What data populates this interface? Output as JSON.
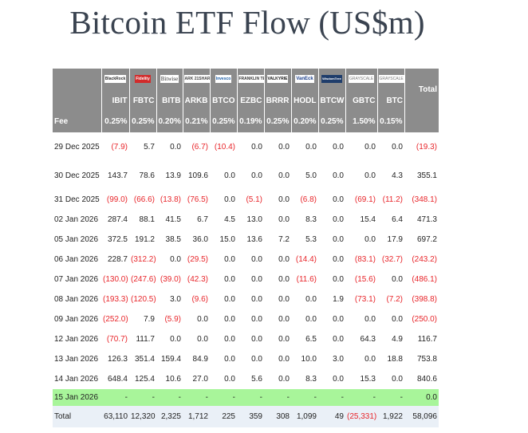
{
  "title": "Bitcoin ETF Flow (US$m)",
  "columns": [
    {
      "logo": "BlackRock",
      "ticker": "IBIT",
      "fee": "0.25%"
    },
    {
      "logo": "Fidelity",
      "ticker": "FBTC",
      "fee": "0.25%"
    },
    {
      "logo": "Bitwise",
      "ticker": "BITB",
      "fee": "0.20%"
    },
    {
      "logo": "ARK 21SHARES",
      "ticker": "ARKB",
      "fee": "0.21%"
    },
    {
      "logo": "Invesco",
      "ticker": "BTCO",
      "fee": "0.25%"
    },
    {
      "logo": "FRANKLIN TEMPLETON",
      "ticker": "EZBC",
      "fee": "0.19%"
    },
    {
      "logo": "VALKYRIE",
      "ticker": "BRRR",
      "fee": "0.25%"
    },
    {
      "logo": "VanEck",
      "ticker": "HODL",
      "fee": "0.20%"
    },
    {
      "logo": "WisdomTree",
      "ticker": "BTCW",
      "fee": "0.25%"
    },
    {
      "logo": "GRAYSCALE",
      "ticker": "GBTC",
      "fee": "1.50%"
    },
    {
      "logo": "GRAYSCALE",
      "ticker": "BTC",
      "fee": "0.15%"
    }
  ],
  "total_header": "Total",
  "fee_label": "Fee",
  "rows": [
    {
      "date": "29 Dec 2025",
      "values": [
        "(7.9)",
        "5.7",
        "0.0",
        "(6.7)",
        "(10.4)",
        "0.0",
        "0.0",
        "0.0",
        "0.0",
        "0.0",
        "0.0"
      ],
      "total": "(19.3)"
    },
    {
      "date": "30 Dec 2025",
      "values": [
        "143.7",
        "78.6",
        "13.9",
        "109.6",
        "0.0",
        "0.0",
        "0.0",
        "5.0",
        "0.0",
        "0.0",
        "4.3"
      ],
      "total": "355.1"
    },
    {
      "date": "31 Dec 2025",
      "values": [
        "(99.0)",
        "(66.6)",
        "(13.8)",
        "(76.5)",
        "0.0",
        "(5.1)",
        "0.0",
        "(6.8)",
        "0.0",
        "(69.1)",
        "(11.2)"
      ],
      "total": "(348.1)"
    },
    {
      "date": "02 Jan 2026",
      "values": [
        "287.4",
        "88.1",
        "41.5",
        "6.7",
        "4.5",
        "13.0",
        "0.0",
        "8.3",
        "0.0",
        "15.4",
        "6.4"
      ],
      "total": "471.3"
    },
    {
      "date": "05 Jan 2026",
      "values": [
        "372.5",
        "191.2",
        "38.5",
        "36.0",
        "15.0",
        "13.6",
        "7.2",
        "5.3",
        "0.0",
        "0.0",
        "17.9"
      ],
      "total": "697.2"
    },
    {
      "date": "06 Jan 2026",
      "values": [
        "228.7",
        "(312.2)",
        "0.0",
        "(29.5)",
        "0.0",
        "0.0",
        "0.0",
        "(14.4)",
        "0.0",
        "(83.1)",
        "(32.7)"
      ],
      "total": "(243.2)"
    },
    {
      "date": "07 Jan 2026",
      "values": [
        "(130.0)",
        "(247.6)",
        "(39.0)",
        "(42.3)",
        "0.0",
        "0.0",
        "0.0",
        "(11.6)",
        "0.0",
        "(15.6)",
        "0.0"
      ],
      "total": "(486.1)"
    },
    {
      "date": "08 Jan 2026",
      "values": [
        "(193.3)",
        "(120.5)",
        "3.0",
        "(9.6)",
        "0.0",
        "0.0",
        "0.0",
        "0.0",
        "1.9",
        "(73.1)",
        "(7.2)"
      ],
      "total": "(398.8)"
    },
    {
      "date": "09 Jan 2026",
      "values": [
        "(252.0)",
        "7.9",
        "(5.9)",
        "0.0",
        "0.0",
        "0.0",
        "0.0",
        "0.0",
        "0.0",
        "0.0",
        "0.0"
      ],
      "total": "(250.0)"
    },
    {
      "date": "12 Jan 2026",
      "values": [
        "(70.7)",
        "111.7",
        "0.0",
        "0.0",
        "0.0",
        "0.0",
        "0.0",
        "6.5",
        "0.0",
        "64.3",
        "4.9"
      ],
      "total": "116.7"
    },
    {
      "date": "13 Jan 2026",
      "values": [
        "126.3",
        "351.4",
        "159.4",
        "84.9",
        "0.0",
        "0.0",
        "0.0",
        "10.0",
        "3.0",
        "0.0",
        "18.8"
      ],
      "total": "753.8"
    },
    {
      "date": "14 Jan 2026",
      "values": [
        "648.4",
        "125.4",
        "10.6",
        "27.0",
        "0.0",
        "5.6",
        "0.0",
        "8.3",
        "0.0",
        "15.3",
        "0.0"
      ],
      "total": "840.6"
    },
    {
      "date": "15 Jan 2026",
      "values": [
        "-",
        "-",
        "-",
        "-",
        "-",
        "-",
        "-",
        "-",
        "-",
        "-",
        "-"
      ],
      "total": "0.0",
      "highlight": true
    },
    {
      "date": "Total",
      "values": [
        "63,110",
        "12,320",
        "2,325",
        "1,712",
        "225",
        "359",
        "308",
        "1,099",
        "49",
        "(25,331)",
        "1,922"
      ],
      "total": "58,096",
      "is_total": true
    }
  ],
  "colors": {
    "header_bg": "#8c8c8c",
    "negative": "#e8262b",
    "highlight_row": "#a8f59a",
    "total_row": "#eaf0f7",
    "title": "#3a4350"
  }
}
